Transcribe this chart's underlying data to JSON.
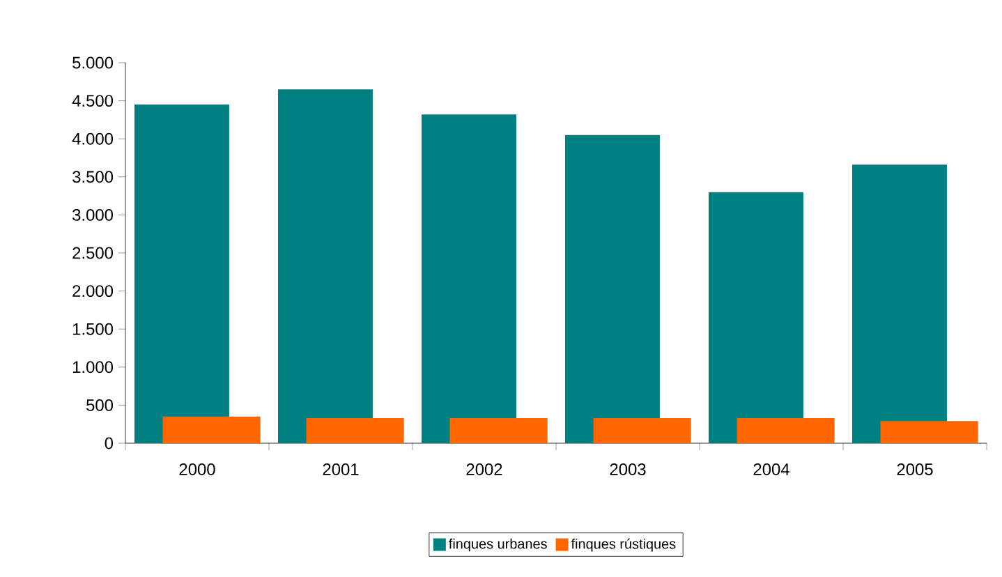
{
  "chart_data": {
    "type": "bar",
    "categories": [
      "2000",
      "2001",
      "2002",
      "2003",
      "2004",
      "2005"
    ],
    "series": [
      {
        "name": "finques urbanes",
        "color": "#008080",
        "values": [
          4450,
          4650,
          4320,
          4050,
          3300,
          3660
        ]
      },
      {
        "name": "finques rústiques",
        "color": "#ff6600",
        "values": [
          350,
          330,
          330,
          330,
          330,
          290
        ]
      }
    ],
    "ylim": [
      0,
      5000
    ],
    "yticks": [
      0,
      {
        "value": 500,
        "label": "500"
      },
      {
        "value": 1000,
        "label": "1.000"
      },
      {
        "value": 1500,
        "label": "1.500"
      },
      {
        "value": 2000,
        "label": "2.000"
      },
      {
        "value": 2500,
        "label": "2.500"
      },
      {
        "value": 3000,
        "label": "3.000"
      },
      {
        "value": 3500,
        "label": "3.500"
      },
      {
        "value": 4000,
        "label": "4.000"
      },
      {
        "value": 4500,
        "label": "4.500"
      },
      {
        "value": 5000,
        "label": "5.000"
      }
    ],
    "grid": false,
    "legend": "bottom"
  }
}
